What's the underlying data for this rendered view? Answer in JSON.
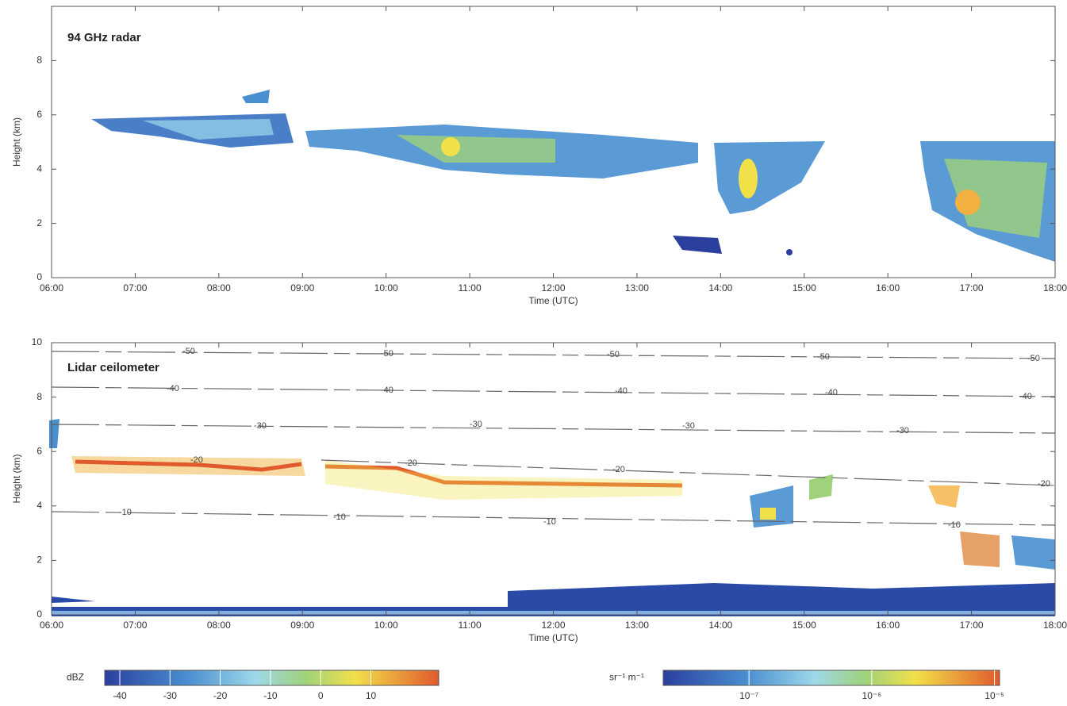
{
  "chart_data": [
    {
      "type": "time-height",
      "title": "94 GHz radar",
      "xlabel": "Time (UTC)",
      "ylabel": "Height (km)",
      "xlim": [
        6,
        18
      ],
      "xticks": [
        {
          "value": 6,
          "label": "06:00"
        },
        {
          "value": 7,
          "label": "07:00"
        },
        {
          "value": 8,
          "label": "08:00"
        },
        {
          "value": 9,
          "label": "09:00"
        },
        {
          "value": 10,
          "label": "10:00"
        },
        {
          "value": 11,
          "label": "11:00"
        },
        {
          "value": 12,
          "label": "12:00"
        },
        {
          "value": 13,
          "label": "13:00"
        },
        {
          "value": 14,
          "label": "14:00"
        },
        {
          "value": 15,
          "label": "15:00"
        },
        {
          "value": 16,
          "label": "16:00"
        },
        {
          "value": 17,
          "label": "17:00"
        },
        {
          "value": 18,
          "label": "18:00"
        }
      ],
      "ylim": [
        0,
        10
      ],
      "yticks": [
        0,
        2,
        4,
        6,
        8
      ]
    },
    {
      "type": "time-height",
      "title": "Lidar ceilometer",
      "xlabel": "Time (UTC)",
      "ylabel": "Height (km)",
      "xlim": [
        6,
        18
      ],
      "xticks": [
        {
          "value": 6,
          "label": "06:00"
        },
        {
          "value": 7,
          "label": "07:00"
        },
        {
          "value": 8,
          "label": "08:00"
        },
        {
          "value": 9,
          "label": "09:00"
        },
        {
          "value": 10,
          "label": "10:00"
        },
        {
          "value": 11,
          "label": "11:00"
        },
        {
          "value": 12,
          "label": "12:00"
        },
        {
          "value": 13,
          "label": "13:00"
        },
        {
          "value": 14,
          "label": "14:00"
        },
        {
          "value": 15,
          "label": "15:00"
        },
        {
          "value": 16,
          "label": "16:00"
        },
        {
          "value": 17,
          "label": "17:00"
        },
        {
          "value": 18,
          "label": "18:00"
        }
      ],
      "ylim": [
        0,
        10
      ],
      "yticks": [
        0,
        2,
        4,
        6,
        8,
        10
      ],
      "contour_labels": [
        "-50",
        "-50",
        "-50",
        "-50",
        "-50",
        "-40",
        "-40",
        "-40",
        "-40",
        "-40",
        "-30",
        "-30",
        "-30",
        "-30",
        "-20",
        "-20",
        "-20",
        "-20",
        "-10",
        "-10",
        "-10",
        "-10"
      ]
    },
    {
      "type": "colorbar",
      "label": "dBZ",
      "xlim": [
        -43,
        23.5
      ],
      "xticks": [
        -40,
        -30,
        -20,
        -10,
        0,
        10
      ]
    },
    {
      "type": "colorbar",
      "label": "sr⁻¹ m⁻¹",
      "log": true,
      "xlim": [
        2e-08,
        1.1e-05
      ],
      "xticks": [
        {
          "value": 1e-07,
          "label": "10⁻⁷"
        },
        {
          "value": 1e-06,
          "label": "10⁻⁶"
        },
        {
          "value": 1e-05,
          "label": "10⁻⁵"
        }
      ]
    }
  ]
}
